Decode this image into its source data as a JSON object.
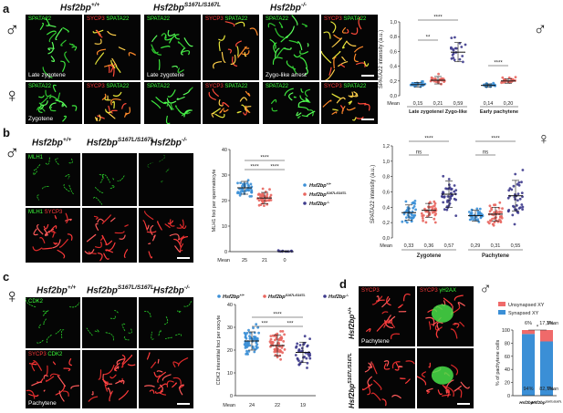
{
  "panels": {
    "a": {
      "label": "a",
      "sex_top": "♂",
      "sex_bottom": "♀",
      "genotypes": [
        "Hsf2bp",
        "+/+",
        "Hsf2bp",
        "S167L/S167L",
        "Hsf2bp",
        "-/-"
      ],
      "channels": {
        "spatial": "SPATA22",
        "sycp3": "SYCP3"
      },
      "captions": {
        "late_zygotene": "Late zygotene",
        "zygo_arrest": "Zygo-like arrest",
        "zygotene": "Zygotene"
      }
    },
    "b": {
      "label": "b",
      "sex": "♂",
      "channels": {
        "mlh1": "MLH1",
        "sycp3": "SYCP3"
      }
    },
    "c": {
      "label": "c",
      "sex": "♀",
      "channels": {
        "cdk2": "CDK2",
        "sycp3": "SYCP3"
      },
      "caption": "Pachytene"
    },
    "d": {
      "label": "d",
      "sex": "♂",
      "channels": {
        "sycp3": "SYCP3",
        "gh2ax": "γH2AX"
      },
      "caption": "Pachytene",
      "row_labels": [
        "Hsf2bp",
        "+/+",
        "Hsf2bp",
        "S167L/S167L"
      ]
    }
  },
  "chart_data": [
    {
      "id": "a-male-spata22",
      "type": "scatter",
      "ylabel": "SPATA22 intensity (a.u.)",
      "ylim": [
        0,
        1.0
      ],
      "yticks": [
        0.0,
        0.2,
        0.4,
        0.6,
        0.8,
        1.0
      ],
      "ytick_labels": [
        "0,0",
        "0,2",
        "0,4",
        "0,6",
        "0,8",
        "1,0"
      ],
      "means_label": "Mean",
      "groups": [
        {
          "mean": 0.15,
          "mean_label": "0,15",
          "color": "#3b8fd6"
        },
        {
          "mean": 0.21,
          "mean_label": "0,21",
          "color": "#e8655e"
        },
        {
          "mean": 0.59,
          "mean_label": "0,59",
          "color": "#3d3a8c"
        },
        {
          "mean": 0.14,
          "mean_label": "0,14",
          "color": "#3b8fd6"
        },
        {
          "mean": 0.2,
          "mean_label": "0,20",
          "color": "#e8655e"
        }
      ],
      "group_labels": [
        "Late zygotene/ Zygo-like",
        "Early pachytene"
      ],
      "significance": [
        "**",
        "****",
        "****"
      ],
      "sex": "♂"
    },
    {
      "id": "b-mlh1",
      "type": "scatter",
      "ylabel": "MLH1 foci per spermatocyte",
      "ylim": [
        0,
        40
      ],
      "yticks": [
        0,
        10,
        20,
        30,
        40
      ],
      "means_label": "Mean",
      "groups": [
        {
          "mean": 25,
          "mean_label": "25",
          "color": "#3b8fd6"
        },
        {
          "mean": 21,
          "mean_label": "21",
          "color": "#e8655e"
        },
        {
          "mean": 0,
          "mean_label": "0",
          "color": "#3d3a8c"
        }
      ],
      "significance": [
        "****",
        "****",
        "****"
      ],
      "legend": [
        "Hsf2bp+/+",
        "Hsf2bpS167L/S167L",
        "Hsf2bp-/-"
      ],
      "legend_parts": [
        [
          "Hsf2bp",
          "+/+"
        ],
        [
          "Hsf2bp",
          "S167L/S167L"
        ],
        [
          "Hsf2bp",
          "-/-"
        ]
      ]
    },
    {
      "id": "a-female-spata22",
      "type": "scatter",
      "ylabel": "SPATA22 intensity (a.u.)",
      "ylim": [
        0,
        1.2
      ],
      "yticks": [
        0.0,
        0.2,
        0.4,
        0.6,
        0.8,
        1.0,
        1.2
      ],
      "ytick_labels": [
        "0,0",
        "0,2",
        "0,4",
        "0,6",
        "0,8",
        "1,0",
        "1,2"
      ],
      "means_label": "Mean",
      "groups": [
        {
          "mean": 0.33,
          "mean_label": "0,33",
          "color": "#3b8fd6"
        },
        {
          "mean": 0.36,
          "mean_label": "0,36",
          "color": "#e8655e"
        },
        {
          "mean": 0.57,
          "mean_label": "0,57",
          "color": "#3d3a8c"
        },
        {
          "mean": 0.29,
          "mean_label": "0,29",
          "color": "#3b8fd6"
        },
        {
          "mean": 0.31,
          "mean_label": "0,31",
          "color": "#e8655e"
        },
        {
          "mean": 0.55,
          "mean_label": "0,55",
          "color": "#3d3a8c"
        }
      ],
      "group_labels": [
        "Zygotene",
        "Pachytene"
      ],
      "significance": [
        "ns",
        "****",
        "ns",
        "****"
      ],
      "sex": "♀"
    },
    {
      "id": "c-cdk2",
      "type": "scatter",
      "ylabel": "CDK2 interstitial foci per oocyte",
      "ylim": [
        0,
        40
      ],
      "yticks": [
        0,
        10,
        20,
        30,
        40
      ],
      "means_label": "Mean",
      "groups": [
        {
          "mean": 24,
          "mean_label": "24",
          "color": "#3b8fd6"
        },
        {
          "mean": 22,
          "mean_label": "22",
          "color": "#e8655e"
        },
        {
          "mean": 19,
          "mean_label": "19",
          "color": "#3d3a8c"
        }
      ],
      "significance": [
        "***",
        "****",
        "***"
      ],
      "legend_parts": [
        [
          "Hsf2bp",
          "+/+"
        ],
        [
          "Hsf2bp",
          "S167L/S167L"
        ],
        [
          "Hsf2bp",
          "-/-"
        ]
      ]
    },
    {
      "id": "d-xy",
      "type": "bar",
      "ylabel": "% of pachytene cells",
      "ylim": [
        0,
        100
      ],
      "yticks": [
        0,
        20,
        40,
        60,
        80,
        100
      ],
      "categories_parts": [
        [
          "Hsf2bp",
          "+/+"
        ],
        [
          "Hsf2bp",
          "S167L/S167L"
        ]
      ],
      "series": [
        {
          "name": "Synapsed XY",
          "values": [
            94,
            82.7
          ],
          "labels": [
            "94%",
            "82,7%"
          ],
          "color": "#3b8fd6"
        },
        {
          "name": "Unsynapsed XY",
          "values": [
            6,
            17.3
          ],
          "labels": [
            "6%",
            "17,3%"
          ],
          "color": "#ef6a6a"
        }
      ],
      "significance": "*",
      "means_label": "Mean",
      "sex": "♂"
    }
  ]
}
